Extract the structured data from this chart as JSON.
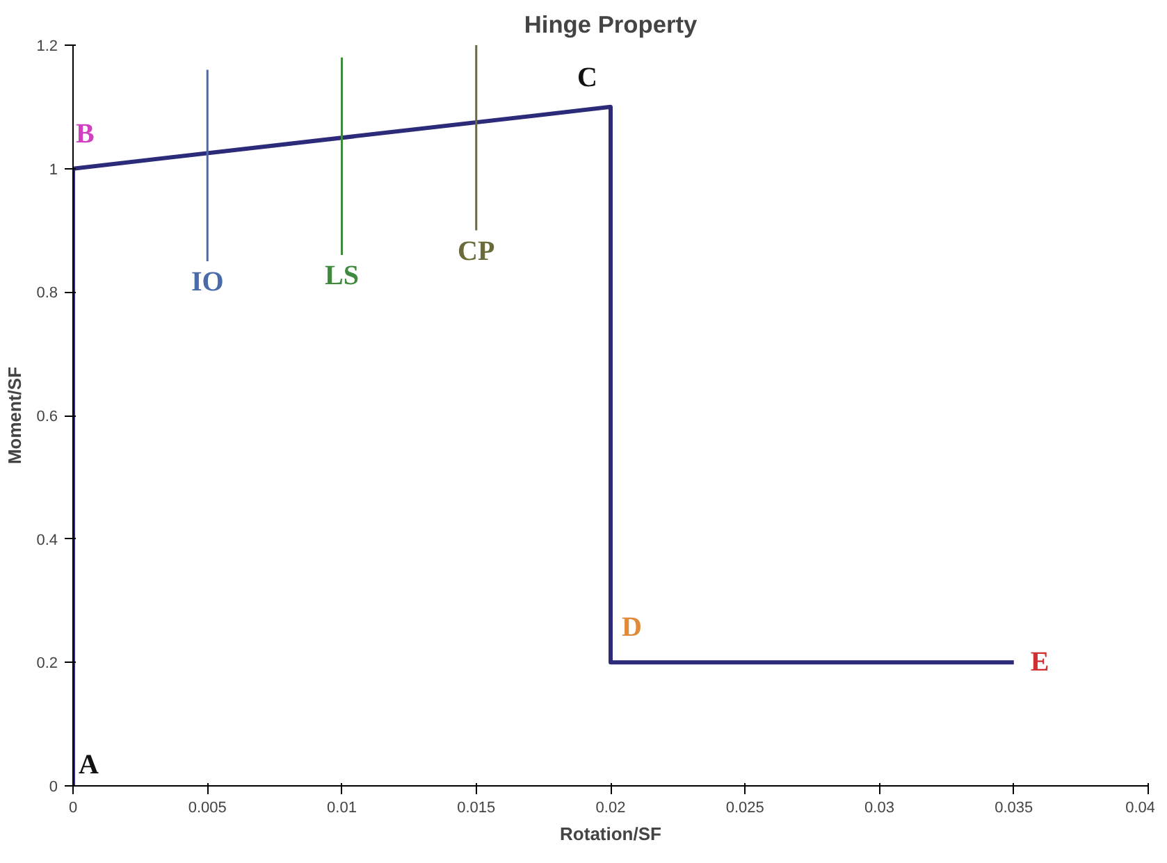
{
  "chart_data": {
    "type": "line",
    "title": "Hinge Property",
    "xlabel": "Rotation/SF",
    "ylabel": "Moment/SF",
    "xlim": [
      0,
      0.04
    ],
    "ylim": [
      0,
      1.2
    ],
    "xticks": [
      0,
      0.005,
      0.01,
      0.015,
      0.02,
      0.025,
      0.03,
      0.035,
      0.04
    ],
    "yticks": [
      0,
      0.2,
      0.4,
      0.6,
      0.8,
      1,
      1.2
    ],
    "grid": false,
    "marker": "none",
    "line_style": "solid",
    "series": [
      {
        "color": "#2b2b7a",
        "x": [
          0,
          0,
          0.02,
          0.02,
          0.035
        ],
        "values": [
          0,
          1,
          1.1,
          0.2,
          0.2
        ]
      },
      {
        "name": "IO",
        "color": "#4a6aa8",
        "x": [
          0.005,
          0.005
        ],
        "values": [
          0.85,
          1.16
        ]
      },
      {
        "name": "LS",
        "color": "#3f8a3f",
        "x": [
          0.01,
          0.01
        ],
        "values": [
          0.86,
          1.18
        ]
      },
      {
        "name": "CP",
        "color": "#6a6a3a",
        "x": [
          0.015,
          0.015
        ],
        "values": [
          0.9,
          1.2
        ]
      }
    ],
    "annotations": [
      {
        "text": "A",
        "x": 0,
        "y": 0
      },
      {
        "text": "B",
        "x": 0,
        "y": 1
      },
      {
        "text": "C",
        "x": 0.02,
        "y": 1.1
      },
      {
        "text": "D",
        "x": 0.02,
        "y": 0.2
      },
      {
        "text": "E",
        "x": 0.035,
        "y": 0.2
      }
    ]
  }
}
